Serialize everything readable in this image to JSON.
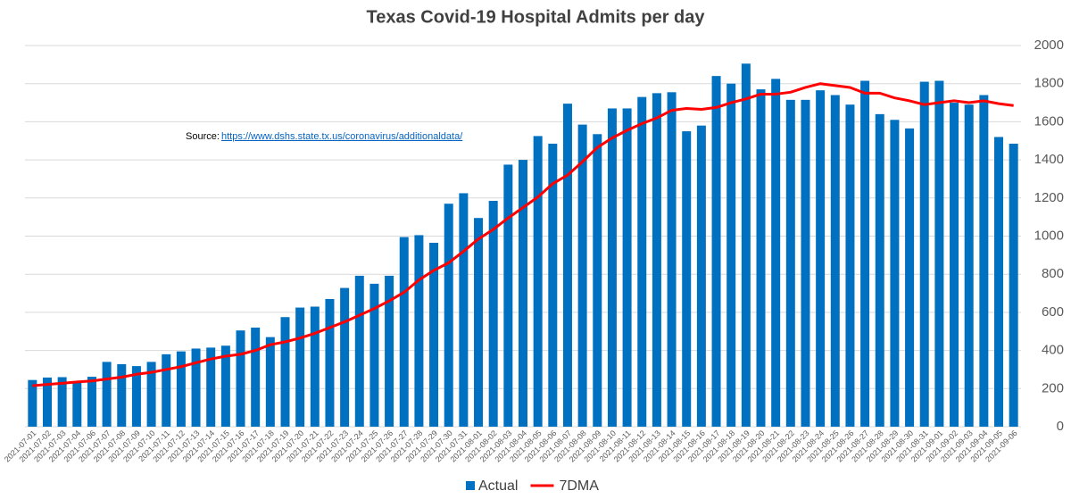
{
  "chart_data": {
    "type": "bar",
    "title": "Texas Covid-19 Hospital Admits per day",
    "source_label": "Source:",
    "source_url": "https://www.dshs.state.tx.us/coronavirus/additionaldata/",
    "categories": [
      "2021-07-01",
      "2021-07-02",
      "2021-07-03",
      "2021-07-04",
      "2021-07-06",
      "2021-07-07",
      "2021-07-08",
      "2021-07-09",
      "2021-07-10",
      "2021-07-11",
      "2021-07-12",
      "2021-07-13",
      "2021-07-14",
      "2021-07-15",
      "2021-07-16",
      "2021-07-17",
      "2021-07-18",
      "2021-07-19",
      "2021-07-20",
      "2021-07-21",
      "2021-07-22",
      "2021-07-23",
      "2021-07-24",
      "2021-07-25",
      "2021-07-26",
      "2021-07-27",
      "2021-07-28",
      "2021-07-29",
      "2021-07-30",
      "2021-07-31",
      "2021-08-01",
      "2021-08-02",
      "2021-08-03",
      "2021-08-04",
      "2021-08-05",
      "2021-08-06",
      "2021-08-07",
      "2021-08-08",
      "2021-08-09",
      "2021-08-10",
      "2021-08-11",
      "2021-08-12",
      "2021-08-13",
      "2021-08-14",
      "2021-08-15",
      "2021-08-16",
      "2021-08-17",
      "2021-08-18",
      "2021-08-19",
      "2021-08-20",
      "2021-08-21",
      "2021-08-22",
      "2021-08-23",
      "2021-08-24",
      "2021-08-25",
      "2021-08-26",
      "2021-08-27",
      "2021-08-28",
      "2021-08-29",
      "2021-08-30",
      "2021-08-31",
      "2021-09-01",
      "2021-09-02",
      "2021-09-03",
      "2021-09-04",
      "2021-09-05",
      "2021-09-06"
    ],
    "series": [
      {
        "name": "Actual",
        "type": "bar",
        "color": "#0070c0",
        "values": [
          245,
          258,
          260,
          232,
          262,
          340,
          328,
          318,
          340,
          380,
          395,
          410,
          415,
          425,
          505,
          520,
          470,
          575,
          625,
          630,
          670,
          728,
          792,
          750,
          792,
          995,
          1005,
          965,
          1170,
          1225,
          1095,
          1185,
          1375,
          1400,
          1525,
          1485,
          1695,
          1585,
          1535,
          1670,
          1670,
          1730,
          1750,
          1755,
          1550,
          1580,
          1840,
          1800,
          1905,
          1770,
          1825,
          1715,
          1715,
          1765,
          1740,
          1690,
          1815,
          1640,
          1610,
          1565,
          1810,
          1815,
          1700,
          1690,
          1740,
          1520,
          1485
        ]
      },
      {
        "name": "7DMA",
        "type": "line",
        "color": "#ff0000",
        "values": [
          215,
          222,
          228,
          235,
          240,
          250,
          260,
          275,
          285,
          300,
          315,
          335,
          355,
          370,
          380,
          400,
          430,
          445,
          465,
          490,
          520,
          550,
          585,
          620,
          660,
          705,
          770,
          820,
          860,
          920,
          985,
          1035,
          1095,
          1150,
          1205,
          1275,
          1320,
          1390,
          1465,
          1515,
          1555,
          1590,
          1620,
          1660,
          1670,
          1665,
          1675,
          1700,
          1720,
          1745,
          1745,
          1755,
          1780,
          1800,
          1790,
          1780,
          1750,
          1750,
          1725,
          1710,
          1690,
          1700,
          1710,
          1700,
          1710,
          1695,
          1685
        ]
      }
    ],
    "ylim": [
      0,
      2000
    ],
    "yticks": [
      0,
      200,
      400,
      600,
      800,
      1000,
      1200,
      1400,
      1600,
      1800,
      2000
    ],
    "grid": true
  }
}
